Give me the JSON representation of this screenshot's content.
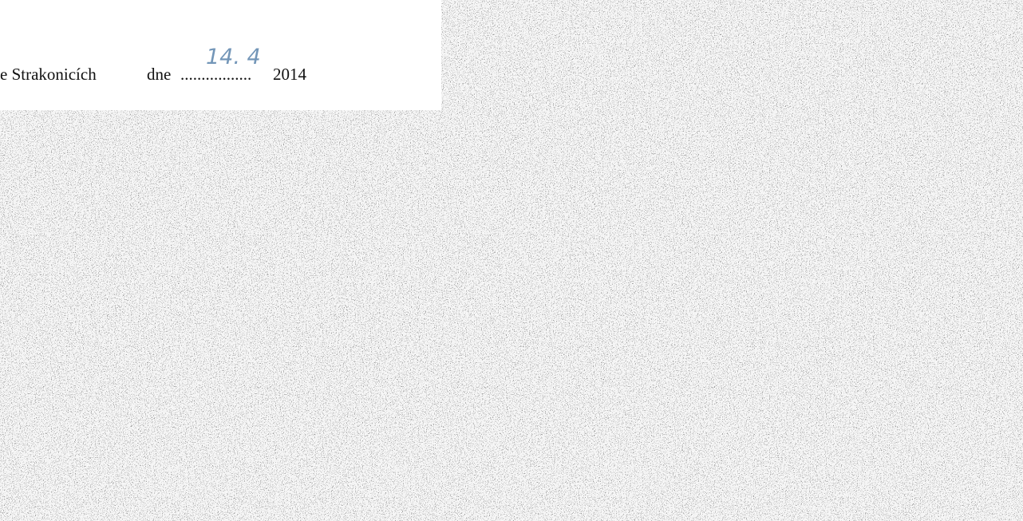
{
  "document": {
    "place": "e Strakonicích",
    "date_word": "dne",
    "dots": ".................",
    "year": "2014",
    "handwritten_date": "14. 4"
  }
}
